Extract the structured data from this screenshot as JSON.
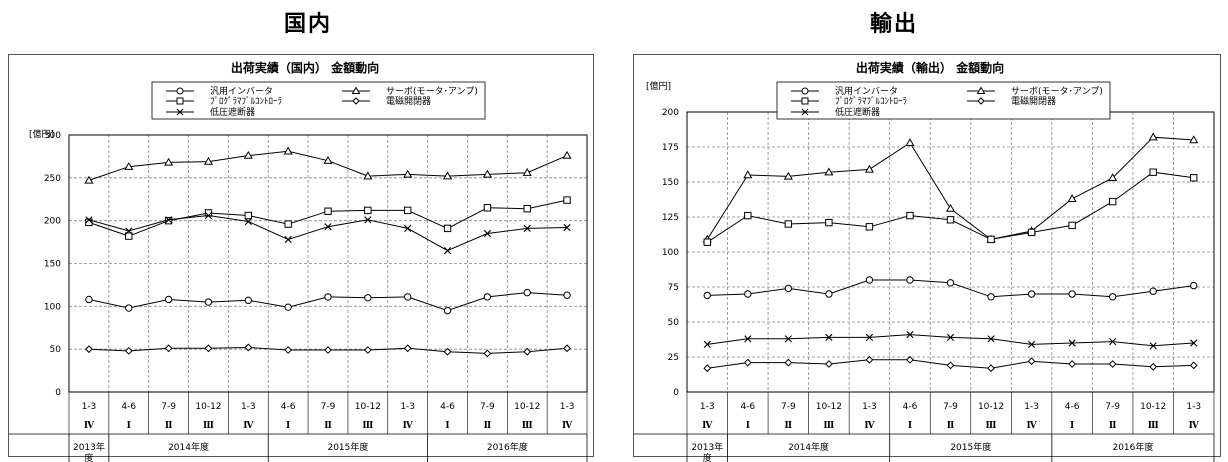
{
  "headings": {
    "left": "国内",
    "right": "輸出"
  },
  "categories": {
    "months": [
      "1-3",
      "4-6",
      "7-9",
      "10-12",
      "1-3",
      "4-6",
      "7-9",
      "10-12",
      "1-3",
      "4-6",
      "7-9",
      "10-12",
      "1-3"
    ],
    "quarters": [
      "Ⅳ",
      "Ⅰ",
      "Ⅱ",
      "Ⅲ",
      "Ⅳ",
      "Ⅰ",
      "Ⅱ",
      "Ⅲ",
      "Ⅳ",
      "Ⅰ",
      "Ⅱ",
      "Ⅲ",
      "Ⅳ"
    ],
    "fiscal_years": [
      {
        "label": "2013年\n度",
        "from": 0,
        "to": 0
      },
      {
        "label": "2014年度",
        "from": 1,
        "to": 4
      },
      {
        "label": "2015年度",
        "from": 5,
        "to": 8
      },
      {
        "label": "2016年度",
        "from": 9,
        "to": 12
      }
    ]
  },
  "chart_data": [
    {
      "type": "line",
      "title": "出荷実績（国内） 金額動向",
      "ylabel": "[億円]",
      "ylim": [
        0,
        300
      ],
      "yticks": [
        0,
        50,
        100,
        150,
        200,
        250,
        300
      ],
      "grid": true,
      "legend_placement": "top-center",
      "series": [
        {
          "name": "汎用インバータ",
          "marker": "circle",
          "values": [
            108,
            98,
            108,
            105,
            107,
            99,
            111,
            110,
            111,
            95,
            111,
            116,
            113
          ]
        },
        {
          "name": "サーボ(モータ･アンプ)",
          "marker": "triangle",
          "values": [
            247,
            263,
            268,
            269,
            276,
            281,
            270,
            252,
            254,
            252,
            254,
            256,
            276
          ]
        },
        {
          "name": "ﾌﾟﾛｸﾞﾗﾏﾌﾞﾙｺﾝﾄﾛｰﾗ",
          "marker": "square",
          "values": [
            198,
            182,
            200,
            209,
            206,
            196,
            211,
            212,
            212,
            191,
            215,
            214,
            224
          ]
        },
        {
          "name": "電磁開閉器",
          "marker": "diamond",
          "values": [
            50,
            48,
            51,
            51,
            52,
            49,
            49,
            49,
            51,
            47,
            45,
            47,
            51
          ]
        },
        {
          "name": "低圧遮断器",
          "marker": "x",
          "values": [
            201,
            188,
            201,
            206,
            199,
            178,
            193,
            201,
            191,
            165,
            185,
            191,
            192
          ]
        }
      ]
    },
    {
      "type": "line",
      "title": "出荷実績（輸出） 金額動向",
      "ylabel": "[億円]",
      "ylim": [
        0,
        200
      ],
      "yticks": [
        0,
        25,
        50,
        75,
        100,
        125,
        150,
        175,
        200
      ],
      "grid": true,
      "legend_placement": "top-center",
      "series": [
        {
          "name": "汎用インバータ",
          "marker": "circle",
          "values": [
            69,
            70,
            74,
            70,
            80,
            80,
            78,
            68,
            70,
            70,
            68,
            72,
            76
          ]
        },
        {
          "name": "サーボ(モータ･アンプ)",
          "marker": "triangle",
          "values": [
            109,
            155,
            154,
            157,
            159,
            178,
            131,
            109,
            115,
            138,
            153,
            182,
            180
          ]
        },
        {
          "name": "ﾌﾟﾛｸﾞﾗﾏﾌﾞﾙｺﾝﾄﾛｰﾗ",
          "marker": "square",
          "values": [
            107,
            126,
            120,
            121,
            118,
            126,
            123,
            109,
            114,
            119,
            136,
            157,
            153
          ]
        },
        {
          "name": "電磁開閉器",
          "marker": "diamond",
          "values": [
            17,
            21,
            21,
            20,
            23,
            23,
            19,
            17,
            22,
            20,
            20,
            18,
            19
          ]
        },
        {
          "name": "低圧遮断器",
          "marker": "x",
          "values": [
            34,
            38,
            38,
            39,
            39,
            41,
            39,
            38,
            34,
            35,
            36,
            33,
            35
          ]
        }
      ]
    }
  ]
}
